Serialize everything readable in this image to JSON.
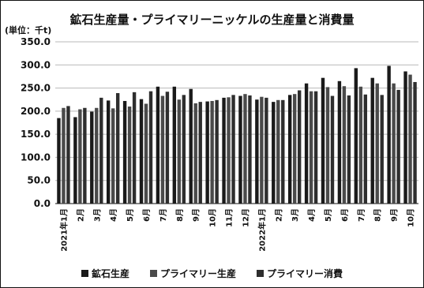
{
  "chart_data": {
    "type": "bar",
    "title": "鉱石生産量・プライマリーニッケルの生産量と消費量",
    "unit": "(単位：千t)",
    "ylim": [
      0,
      350
    ],
    "yticks": [
      "350.0",
      "300.0",
      "250.0",
      "200.0",
      "150.0",
      "100.0",
      "50.0",
      "0.0"
    ],
    "grid": true,
    "legend_position": "bottom",
    "categories": [
      "2021年1月",
      "2月",
      "3月",
      "4月",
      "5月",
      "6月",
      "7月",
      "8月",
      "9月",
      "10月",
      "11月",
      "12月",
      "2022年1月",
      "2月",
      "3月",
      "4月",
      "5月",
      "6月",
      "7月",
      "8月",
      "9月",
      "10月"
    ],
    "series": [
      {
        "name": "鉱石生産",
        "color": "#1a1a1a",
        "values": [
          185,
          187,
          199,
          223,
          222,
          226,
          253,
          253,
          248,
          221,
          229,
          233,
          225,
          220,
          235,
          260,
          272,
          265,
          293,
          272,
          298,
          286
        ]
      },
      {
        "name": "プライマリー生産",
        "color": "#4a4a4a",
        "values": [
          207,
          204,
          207,
          206,
          210,
          216,
          233,
          225,
          217,
          222,
          230,
          237,
          231,
          224,
          237,
          243,
          252,
          254,
          253,
          260,
          260,
          279
        ]
      },
      {
        "name": "プライマリー消費",
        "color": "#2e2e2e",
        "values": [
          211,
          207,
          229,
          239,
          241,
          243,
          242,
          235,
          220,
          224,
          235,
          234,
          229,
          224,
          245,
          243,
          233,
          234,
          236,
          235,
          246,
          263
        ]
      }
    ]
  }
}
